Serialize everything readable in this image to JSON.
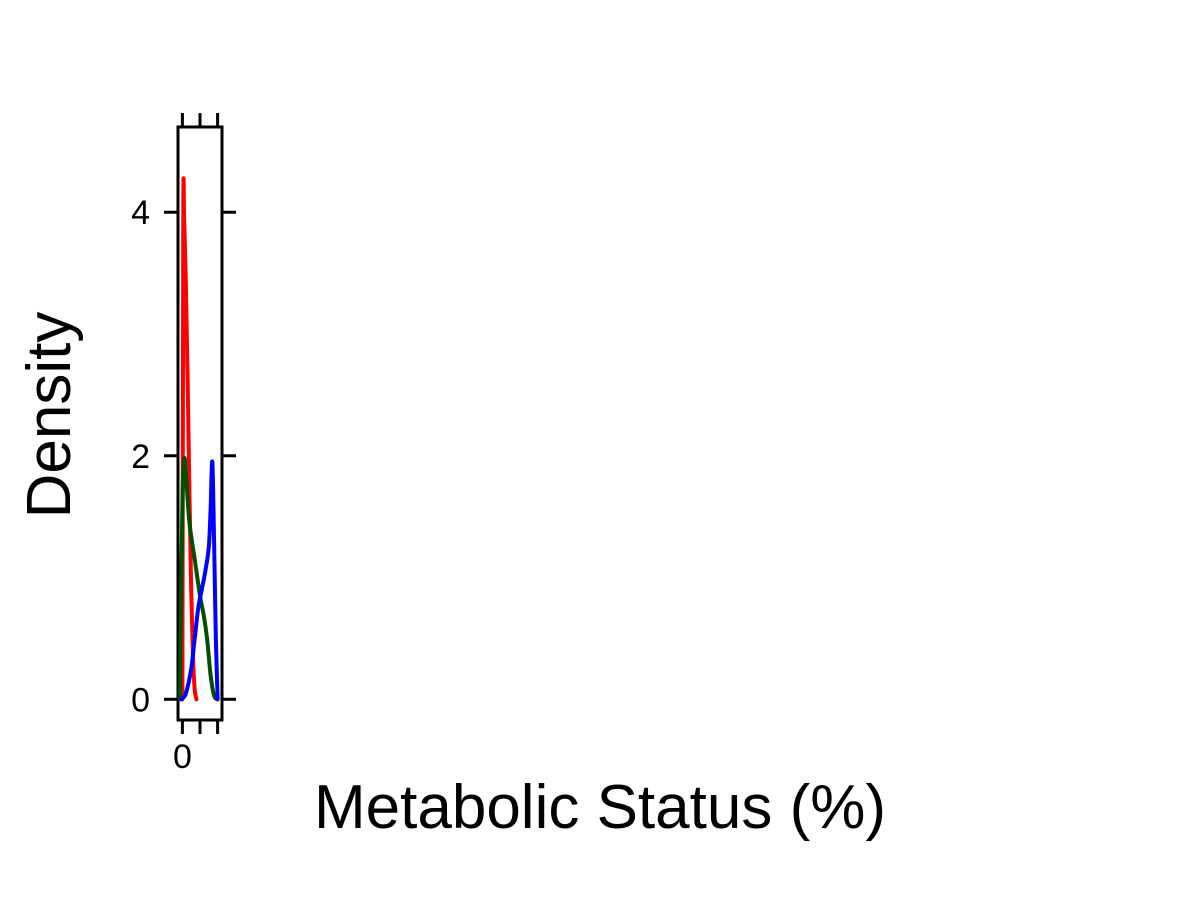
{
  "chart_data": {
    "type": "line",
    "title": "",
    "xlabel": "Metabolic Status (%)",
    "ylabel": "Density",
    "xlim": [
      -0.25,
      2.25
    ],
    "ylim": [
      -0.17,
      4.7
    ],
    "x_ticks": [
      0,
      1,
      2
    ],
    "x_tick_labels": [
      "0",
      "",
      ""
    ],
    "y_ticks": [
      0,
      2,
      4
    ],
    "y_tick_labels": [
      "0",
      "2",
      "4"
    ],
    "grid": false,
    "legend": "none",
    "series": [
      {
        "color": "#ff0000",
        "x": [
          0.0,
          0.05,
          0.1,
          0.2,
          0.3,
          0.4,
          0.5,
          0.6,
          0.7,
          0.8
        ],
        "y": [
          0.0,
          3.97,
          3.95,
          3.4,
          2.6,
          1.7,
          0.9,
          0.35,
          0.08,
          0.0
        ]
      },
      {
        "color": "#005000",
        "x": [
          -0.15,
          0.0,
          0.1,
          0.2,
          0.4,
          0.7,
          1.0,
          1.2,
          1.4,
          1.6,
          1.8,
          2.0
        ],
        "y": [
          0.0,
          1.6,
          1.97,
          1.85,
          1.45,
          1.15,
          0.85,
          0.7,
          0.5,
          0.2,
          0.03,
          0.0
        ]
      },
      {
        "color": "#0000ff",
        "x": [
          -0.05,
          0.2,
          0.5,
          0.7,
          0.9,
          1.1,
          1.3,
          1.5,
          1.6,
          1.7,
          1.8,
          1.9,
          2.0
        ],
        "y": [
          0.0,
          0.05,
          0.25,
          0.5,
          0.75,
          0.9,
          1.05,
          1.25,
          1.55,
          1.95,
          1.3,
          0.5,
          0.0
        ]
      }
    ]
  }
}
